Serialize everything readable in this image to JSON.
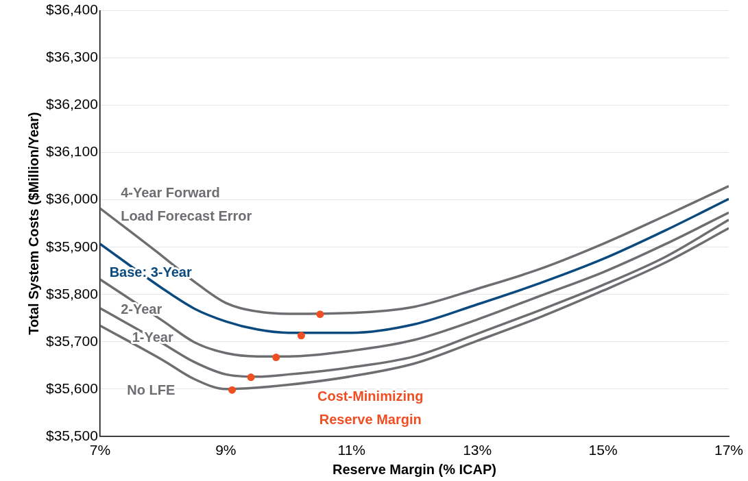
{
  "chart_data": {
    "type": "line",
    "xlabel": "Reserve Margin (% ICAP)",
    "ylabel": "Total System Costs ($Million/Year)",
    "xlim": [
      7,
      17
    ],
    "xticks": [
      {
        "value": 7,
        "label": "7%"
      },
      {
        "value": 9,
        "label": "9%"
      },
      {
        "value": 11,
        "label": "11%"
      },
      {
        "value": 13,
        "label": "13%"
      },
      {
        "value": 15,
        "label": "15%"
      },
      {
        "value": 17,
        "label": "17%"
      }
    ],
    "ylim": [
      35500,
      36400
    ],
    "yticks": [
      {
        "value": 35500,
        "label": "$35,500"
      },
      {
        "value": 35600,
        "label": "$35,600"
      },
      {
        "value": 35700,
        "label": "$35,700"
      },
      {
        "value": 35800,
        "label": "$35,800"
      },
      {
        "value": 35900,
        "label": "$35,900"
      },
      {
        "value": 36000,
        "label": "$36,000"
      },
      {
        "value": 36100,
        "label": "$36,100"
      },
      {
        "value": 36200,
        "label": "$36,200"
      },
      {
        "value": 36300,
        "label": "$36,300"
      },
      {
        "value": 36400,
        "label": "$36,400"
      }
    ],
    "x": [
      7,
      8,
      8.5,
      9,
      9.5,
      10,
      11,
      12,
      13,
      14,
      15,
      16,
      17
    ],
    "grid": "y",
    "legend": false,
    "marker": "none",
    "line_style": "solid",
    "series": [
      {
        "name": "4-Year Forward Load Forecast Error",
        "color": "#6d6e71",
        "values": [
          35982,
          35880,
          35827,
          35782,
          35764,
          35759,
          35761,
          35774,
          35812,
          35854,
          35907,
          35967,
          36029
        ]
      },
      {
        "name": "Base: 3-Year",
        "color": "#0b4a7f",
        "values": [
          35907,
          35812,
          35770,
          35743,
          35726,
          35719,
          35719,
          35737,
          35779,
          35824,
          35875,
          35936,
          36002
        ]
      },
      {
        "name": "2-Year",
        "color": "#6d6e71",
        "values": [
          35832,
          35744,
          35699,
          35676,
          35669,
          35669,
          35681,
          35704,
          35747,
          35797,
          35847,
          35907,
          35973
        ]
      },
      {
        "name": "1-Year",
        "color": "#6d6e71",
        "values": [
          35771,
          35696,
          35657,
          35631,
          35626,
          35631,
          35646,
          35669,
          35717,
          35767,
          35820,
          35880,
          35958
        ]
      },
      {
        "name": "No LFE",
        "color": "#6d6e71",
        "values": [
          35734,
          35661,
          35621,
          35600,
          35603,
          35609,
          35627,
          35654,
          35702,
          35752,
          35808,
          35868,
          35940
        ]
      },
      {
        "name": "Cost-Minimizing Reserve Margin",
        "type": "scatter",
        "marker": "circle",
        "color": "#f04e23",
        "x": [
          10.5,
          10.2,
          9.8,
          9.4,
          9.1
        ],
        "values": [
          35758,
          35713,
          35667,
          35625,
          35598
        ]
      }
    ]
  }
}
